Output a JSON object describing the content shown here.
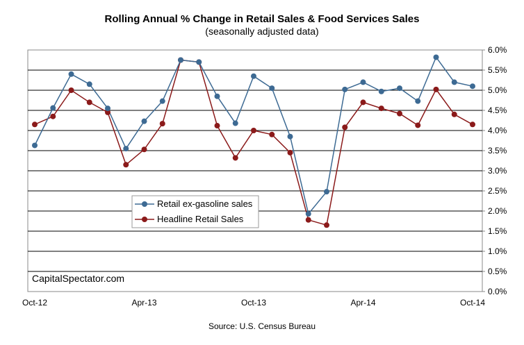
{
  "chart_data": {
    "type": "line",
    "title": "Rolling Annual % Change in Retail Sales & Food Services Sales",
    "subtitle": "(seasonally adjusted data)",
    "source": "Source:  U.S. Census Bureau",
    "watermark": "CapitalSpectator.com",
    "x_tick_labels": [
      "Oct-12",
      "Apr-13",
      "Oct-13",
      "Apr-14",
      "Oct-14"
    ],
    "x_tick_indices": [
      0,
      6,
      12,
      18,
      24
    ],
    "ylim": [
      0.0,
      6.0
    ],
    "y_ticks": [
      "0.0%",
      "0.5%",
      "1.0%",
      "1.5%",
      "2.0%",
      "2.5%",
      "3.0%",
      "3.5%",
      "4.0%",
      "4.5%",
      "5.0%",
      "5.5%",
      "6.0%"
    ],
    "y_tick_values": [
      0.0,
      0.5,
      1.0,
      1.5,
      2.0,
      2.5,
      3.0,
      3.5,
      4.0,
      4.5,
      5.0,
      5.5,
      6.0
    ],
    "grid": "horizontal",
    "legend_position": "center-left",
    "x": [
      "Oct-12",
      "Nov-12",
      "Dec-12",
      "Jan-13",
      "Feb-13",
      "Mar-13",
      "Apr-13",
      "May-13",
      "Jun-13",
      "Jul-13",
      "Aug-13",
      "Sep-13",
      "Oct-13",
      "Nov-13",
      "Dec-13",
      "Jan-14",
      "Feb-14",
      "Mar-14",
      "Apr-14",
      "May-14",
      "Jun-14",
      "Jul-14",
      "Aug-14",
      "Sep-14",
      "Oct-14"
    ],
    "series": [
      {
        "name": "Retail ex-gasoline sales",
        "color": "#3d6a93",
        "values": [
          3.63,
          4.56,
          5.4,
          5.15,
          4.55,
          3.55,
          4.23,
          4.73,
          5.75,
          5.7,
          4.85,
          4.18,
          5.35,
          5.05,
          3.85,
          1.93,
          2.48,
          5.02,
          5.2,
          4.97,
          5.05,
          4.73,
          5.82,
          5.2,
          5.1
        ]
      },
      {
        "name": "Headline Retail Sales",
        "color": "#8b1a1a",
        "values": [
          4.15,
          4.35,
          5.0,
          4.7,
          4.45,
          3.15,
          3.53,
          4.17,
          5.75,
          5.7,
          4.12,
          3.32,
          4.0,
          3.9,
          3.45,
          1.78,
          1.65,
          4.08,
          4.7,
          4.55,
          4.42,
          4.13,
          5.02,
          4.4,
          4.15
        ]
      }
    ]
  }
}
